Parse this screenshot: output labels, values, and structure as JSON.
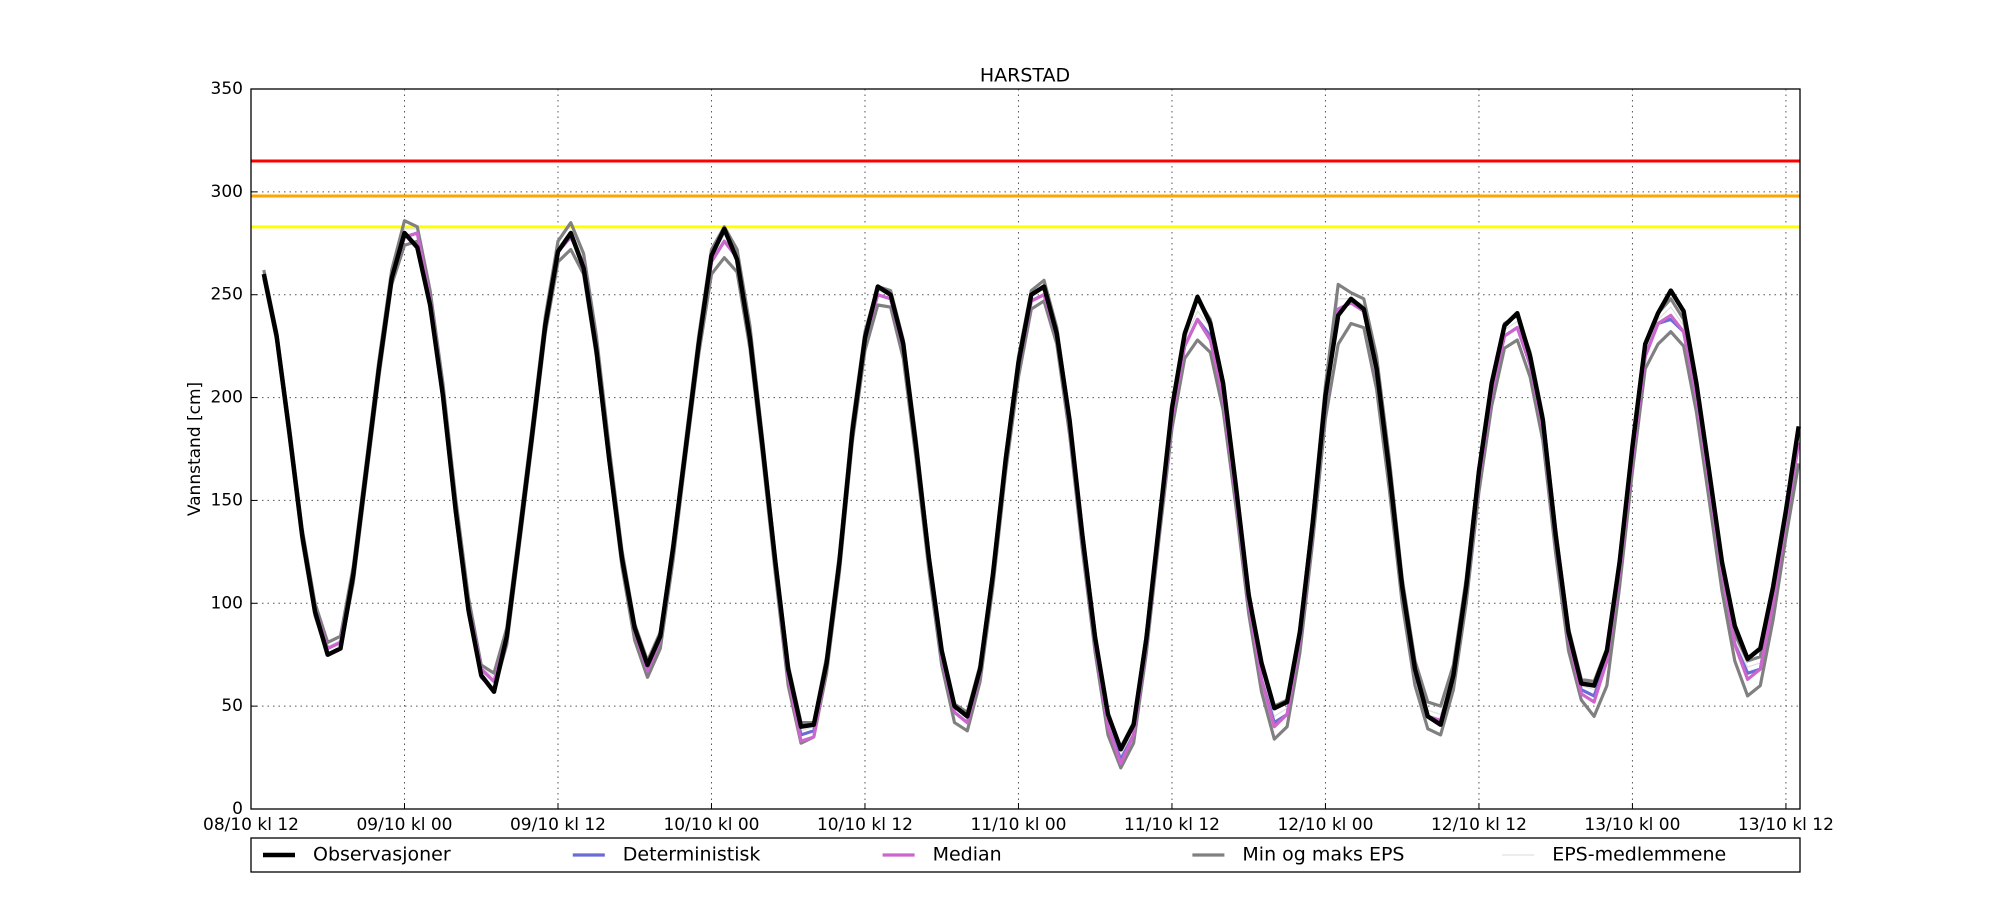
{
  "chart_data": {
    "type": "line",
    "title": "HARSTAD",
    "y_label": "Vannstand [cm]",
    "x": [
      1,
      2,
      3,
      4,
      5,
      6,
      7,
      8,
      9,
      10,
      11,
      12,
      13,
      14,
      15,
      16,
      17,
      18,
      19,
      20,
      21,
      22,
      23,
      24,
      25,
      26,
      27,
      28,
      29,
      30,
      31,
      32,
      33,
      34,
      35,
      36,
      37,
      38,
      39,
      40,
      41,
      42,
      43,
      44,
      45,
      46,
      47,
      48,
      49,
      50,
      51,
      52,
      53,
      54,
      55,
      56,
      57,
      58,
      59,
      60,
      61,
      62,
      63,
      64,
      65,
      66,
      67,
      68,
      69,
      70,
      71,
      72,
      73,
      74,
      75,
      76,
      77,
      78,
      79,
      80,
      81,
      82,
      83,
      84,
      85,
      86,
      87,
      88,
      89,
      90,
      91,
      92,
      93,
      94,
      95,
      96,
      97,
      98,
      99,
      100,
      101,
      102,
      103,
      104,
      105,
      106,
      107,
      108,
      109,
      110,
      111,
      112,
      113,
      114,
      115,
      116,
      117,
      118,
      119,
      120,
      121
    ],
    "xlim": [
      0,
      121.1
    ],
    "xticks": [
      {
        "value": 0,
        "label": "08/10 kl 12"
      },
      {
        "value": 12,
        "label": "09/10 kl 00"
      },
      {
        "value": 24,
        "label": "09/10 kl 12"
      },
      {
        "value": 36,
        "label": "10/10 kl 00"
      },
      {
        "value": 48,
        "label": "10/10 kl 12"
      },
      {
        "value": 60,
        "label": "11/10 kl 00"
      },
      {
        "value": 72,
        "label": "11/10 kl 12"
      },
      {
        "value": 84,
        "label": "12/10 kl 00"
      },
      {
        "value": 96,
        "label": "12/10 kl 12"
      },
      {
        "value": 108,
        "label": "13/10 kl 00"
      },
      {
        "value": 120,
        "label": "13/10 kl 12"
      }
    ],
    "ylim": [
      0,
      350
    ],
    "yticks": [
      0,
      50,
      100,
      150,
      200,
      250,
      300,
      350
    ],
    "grid": true,
    "thresholds": [
      {
        "value": 315,
        "color": "#ff0000"
      },
      {
        "value": 298,
        "color": "#ffa500"
      },
      {
        "value": 283,
        "color": "#ffff00"
      }
    ],
    "series": [
      {
        "name": "Observasjoner",
        "color": "#000000",
        "width": 3.5,
        "values": [
          260,
          230,
          183,
          133,
          96,
          75,
          78,
          114,
          164,
          214,
          258,
          280,
          273,
          245,
          201,
          145,
          97,
          65,
          57,
          84,
          133,
          183,
          235,
          271,
          280,
          263,
          223,
          170,
          122,
          88,
          70,
          84,
          127,
          176,
          226,
          269,
          282,
          267,
          229,
          176,
          120,
          68,
          40,
          41,
          71,
          120,
          183,
          229,
          254,
          250,
          226,
          176,
          122,
          77,
          50,
          45,
          68,
          114,
          170,
          217,
          250,
          254,
          231,
          189,
          133,
          83,
          46,
          29,
          41,
          83,
          139,
          195,
          231,
          249,
          236,
          207,
          157,
          104,
          71,
          49,
          52,
          86,
          139,
          201,
          240,
          248,
          243,
          214,
          164,
          108,
          68,
          45,
          41,
          65,
          108,
          164,
          207,
          235,
          241,
          220,
          189,
          133,
          86,
          61,
          60,
          77,
          120,
          176,
          226,
          241,
          252,
          242,
          207,
          164,
          120,
          89,
          73,
          78,
          108,
          145,
          186
        ]
      },
      {
        "name": "Deterministisk",
        "color": "#6b6bd6",
        "width": 2.5,
        "values": [
          260,
          230,
          183,
          133,
          97,
          78,
          81,
          114,
          164,
          214,
          258,
          278,
          280,
          248,
          203,
          147,
          99,
          68,
          62,
          84,
          133,
          183,
          235,
          271,
          278,
          265,
          225,
          172,
          122,
          86,
          67,
          82,
          125,
          176,
          226,
          266,
          276,
          268,
          230,
          176,
          118,
          64,
          36,
          38,
          70,
          120,
          183,
          228,
          250,
          248,
          224,
          175,
          120,
          74,
          47,
          42,
          66,
          112,
          168,
          215,
          247,
          250,
          230,
          186,
          130,
          80,
          40,
          24,
          36,
          80,
          136,
          190,
          225,
          238,
          230,
          200,
          152,
          100,
          63,
          42,
          46,
          82,
          136,
          198,
          243,
          246,
          242,
          212,
          162,
          106,
          66,
          45,
          43,
          64,
          106,
          160,
          202,
          230,
          234,
          216,
          185,
          130,
          83,
          58,
          55,
          72,
          115,
          170,
          220,
          236,
          238,
          232,
          200,
          158,
          115,
          80,
          66,
          68,
          100,
          140,
          178
        ]
      },
      {
        "name": "Median",
        "color": "#cc66cc",
        "width": 2.5,
        "values": [
          260,
          230,
          183,
          133,
          97,
          78,
          81,
          114,
          164,
          214,
          258,
          278,
          280,
          248,
          203,
          147,
          99,
          68,
          62,
          84,
          133,
          183,
          235,
          271,
          278,
          265,
          225,
          172,
          122,
          86,
          67,
          82,
          125,
          176,
          226,
          266,
          276,
          268,
          230,
          176,
          118,
          64,
          33,
          35,
          70,
          120,
          183,
          228,
          250,
          248,
          224,
          175,
          120,
          74,
          47,
          42,
          66,
          112,
          168,
          215,
          247,
          250,
          230,
          186,
          130,
          80,
          40,
          22,
          36,
          80,
          136,
          190,
          225,
          238,
          228,
          200,
          152,
          100,
          63,
          40,
          46,
          82,
          136,
          198,
          243,
          246,
          242,
          212,
          162,
          106,
          66,
          45,
          43,
          64,
          106,
          160,
          202,
          230,
          234,
          216,
          185,
          130,
          83,
          56,
          52,
          72,
          115,
          170,
          220,
          236,
          240,
          232,
          200,
          158,
          115,
          80,
          63,
          68,
          100,
          140,
          178
        ]
      },
      {
        "name": "Min og maks EPS",
        "color": "#808080",
        "width": 2.5,
        "min": [
          258,
          228,
          180,
          130,
          94,
          75,
          78,
          110,
          160,
          210,
          255,
          274,
          276,
          244,
          199,
          143,
          95,
          64,
          58,
          80,
          129,
          179,
          231,
          266,
          272,
          260,
          220,
          168,
          118,
          82,
          64,
          78,
          121,
          172,
          221,
          260,
          268,
          261,
          224,
          171,
          114,
          60,
          32,
          35,
          66,
          115,
          178,
          223,
          245,
          244,
          219,
          170,
          116,
          70,
          42,
          38,
          62,
          108,
          164,
          210,
          243,
          247,
          226,
          182,
          126,
          76,
          36,
          20,
          32,
          76,
          132,
          185,
          219,
          228,
          222,
          194,
          147,
          95,
          57,
          34,
          40,
          76,
          130,
          190,
          226,
          236,
          234,
          204,
          155,
          100,
          60,
          39,
          36,
          58,
          100,
          154,
          196,
          224,
          228,
          210,
          179,
          124,
          77,
          53,
          45,
          60,
          108,
          164,
          214,
          226,
          232,
          225,
          193,
          150,
          106,
          72,
          55,
          60,
          92,
          132,
          168
        ],
        "max": [
          262,
          232,
          186,
          136,
          100,
          81,
          84,
          118,
          168,
          218,
          262,
          286,
          283,
          252,
          207,
          151,
          103,
          70,
          66,
          88,
          137,
          187,
          239,
          276,
          285,
          270,
          230,
          176,
          126,
          90,
          72,
          86,
          129,
          180,
          230,
          272,
          283,
          272,
          235,
          180,
          122,
          70,
          42,
          42,
          74,
          124,
          187,
          232,
          254,
          252,
          228,
          180,
          124,
          78,
          51,
          47,
          70,
          116,
          172,
          220,
          252,
          257,
          234,
          190,
          135,
          85,
          46,
          30,
          42,
          85,
          140,
          196,
          232,
          248,
          238,
          208,
          158,
          106,
          70,
          50,
          53,
          88,
          142,
          206,
          255,
          251,
          248,
          220,
          170,
          112,
          72,
          52,
          50,
          70,
          112,
          166,
          208,
          236,
          240,
          222,
          191,
          136,
          88,
          63,
          62,
          78,
          120,
          176,
          226,
          241,
          248,
          238,
          206,
          164,
          120,
          85,
          72,
          74,
          106,
          146,
          186
        ]
      },
      {
        "name": "EPS-medlemmene",
        "color": "#e0e0e0",
        "width": 1,
        "values": [
          261,
          231,
          184,
          134,
          98,
          79,
          82,
          116,
          166,
          216,
          260,
          282,
          282,
          250,
          205,
          149,
          101,
          69,
          64,
          86,
          135,
          185,
          237,
          273,
          281,
          267,
          227,
          174,
          124,
          88,
          69,
          84,
          127,
          178,
          228,
          269,
          279,
          270,
          232,
          178,
          120,
          66,
          38,
          40,
          72,
          122,
          185,
          230,
          252,
          250,
          226,
          177,
          122,
          76,
          49,
          44,
          68,
          114,
          170,
          217,
          249,
          253,
          232,
          188,
          132,
          82,
          42,
          26,
          38,
          82,
          138,
          192,
          228,
          242,
          234,
          204,
          155,
          103,
          66,
          45,
          49,
          85,
          139,
          202,
          248,
          248,
          245,
          216,
          166,
          109,
          69,
          48,
          46,
          67,
          109,
          163,
          205,
          233,
          237,
          219,
          188,
          133,
          85,
          60,
          58,
          75,
          117,
          173,
          223,
          238,
          244,
          235,
          203,
          161,
          117,
          82,
          69,
          71,
          103,
          143,
          182
        ]
      }
    ]
  }
}
